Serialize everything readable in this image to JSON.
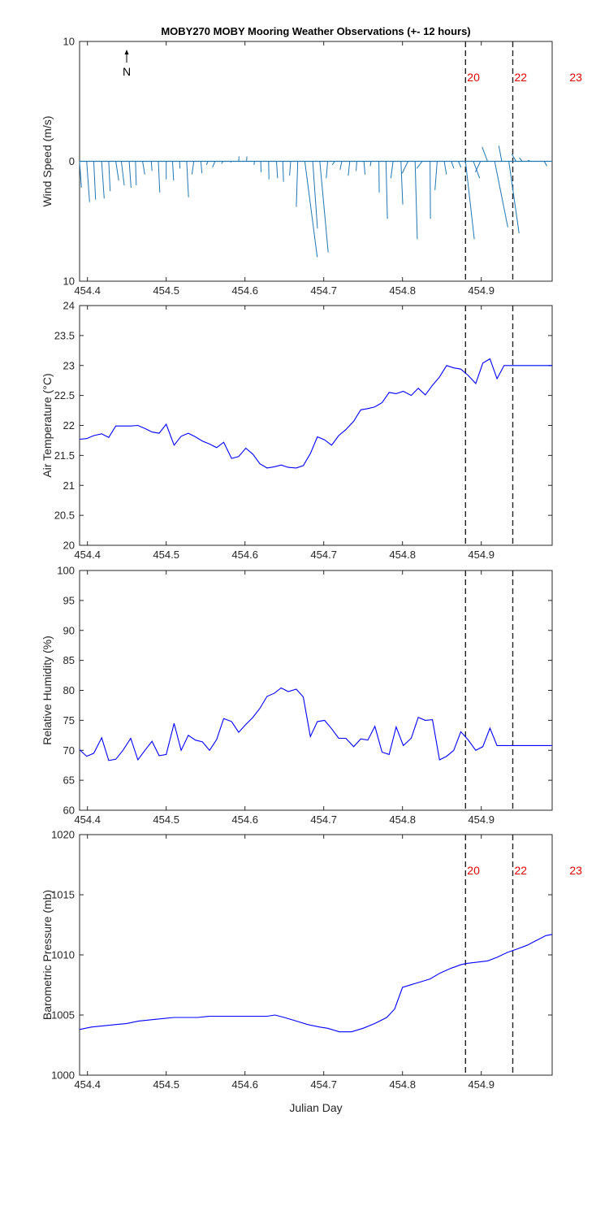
{
  "figure": {
    "title": "MOBY270 MOBY Mooring Weather Observations (+- 12 hours)"
  },
  "colors": {
    "wind": "#1f77b4",
    "line": "#0000ff",
    "event_label": "#e00000",
    "axis": "#262626"
  },
  "chart_data": [
    {
      "type": "quiver",
      "name": "wind",
      "ylabel": "Wind Speed (m/s)",
      "xlim": [
        454.39,
        454.99
      ],
      "ylim": [
        -10,
        10
      ],
      "yticks": [
        10,
        0,
        10
      ],
      "xticks": [
        "454.4",
        "454.5",
        "454.6",
        "454.7",
        "454.8",
        "454.9"
      ],
      "north_label": "N",
      "events": [
        {
          "x": 454.88,
          "label": "20"
        },
        {
          "x": 454.94,
          "label": "22"
        },
        {
          "x": 455.01,
          "label": "23"
        }
      ],
      "arrows": [
        [
          454.39,
          0.5,
          -2.2
        ],
        [
          454.399,
          0.8,
          -3.4
        ],
        [
          454.408,
          0.5,
          -3.2
        ],
        [
          454.418,
          0.7,
          -3.1
        ],
        [
          454.427,
          0.4,
          -2.5
        ],
        [
          454.436,
          0.8,
          -1.6
        ],
        [
          454.443,
          0.8,
          -2.0
        ],
        [
          454.453,
          0.5,
          -2.2
        ],
        [
          454.461,
          0.2,
          -2.0
        ],
        [
          454.47,
          0.6,
          -1.1
        ],
        [
          454.481,
          0.2,
          -0.8
        ],
        [
          454.49,
          0.4,
          -2.6
        ],
        [
          454.5,
          0.0,
          -1.5
        ],
        [
          454.508,
          0.3,
          -1.6
        ],
        [
          454.517,
          0.1,
          -0.6
        ],
        [
          454.526,
          0.5,
          -3.0
        ],
        [
          454.535,
          -0.5,
          -1.1
        ],
        [
          454.544,
          0.3,
          -1.0
        ],
        [
          454.553,
          -0.4,
          -0.3
        ],
        [
          454.562,
          -0.7,
          -0.5
        ],
        [
          454.572,
          -0.4,
          -0.2
        ],
        [
          454.582,
          0.0,
          -0.1
        ],
        [
          454.592,
          0.1,
          0.4
        ],
        [
          454.602,
          0.1,
          0.4
        ],
        [
          454.612,
          -0.1,
          -0.3
        ],
        [
          454.62,
          0.1,
          -0.9
        ],
        [
          454.63,
          0.1,
          -1.5
        ],
        [
          454.64,
          0.3,
          -1.4
        ],
        [
          454.648,
          0.2,
          -1.7
        ],
        [
          454.658,
          -0.3,
          -1.2
        ],
        [
          454.667,
          -0.4,
          -3.8
        ],
        [
          454.676,
          3.4,
          -8.0
        ],
        [
          454.686,
          1.3,
          -5.6
        ],
        [
          454.695,
          2.3,
          -7.6
        ],
        [
          454.705,
          -0.4,
          -1.4
        ],
        [
          454.714,
          -0.7,
          -0.3
        ],
        [
          454.723,
          -0.5,
          -0.7
        ],
        [
          454.733,
          -0.4,
          -1.2
        ],
        [
          454.742,
          -0.2,
          -0.8
        ],
        [
          454.751,
          0.3,
          -1.1
        ],
        [
          454.76,
          -0.2,
          -0.4
        ],
        [
          454.77,
          0.1,
          -2.6
        ],
        [
          454.779,
          0.4,
          -4.8
        ],
        [
          454.788,
          -0.6,
          -1.4
        ],
        [
          454.798,
          0.5,
          -3.6
        ],
        [
          454.807,
          -1.6,
          -1.0
        ],
        [
          454.816,
          0.6,
          -6.5
        ],
        [
          454.825,
          -1.5,
          -0.6
        ],
        [
          454.835,
          0.1,
          -4.8
        ],
        [
          454.844,
          -0.6,
          -2.4
        ],
        [
          454.853,
          0.6,
          -1.1
        ],
        [
          454.862,
          0.7,
          -0.6
        ],
        [
          454.871,
          0.7,
          -0.5
        ],
        [
          454.88,
          2.4,
          -6.5
        ],
        [
          454.89,
          1.7,
          -1.4
        ],
        [
          454.899,
          -1.4,
          -0.9
        ],
        [
          454.908,
          -1.5,
          1.2
        ],
        [
          454.917,
          3.6,
          -5.5
        ],
        [
          454.926,
          -0.8,
          1.3
        ],
        [
          454.935,
          2.8,
          -6.0
        ],
        [
          454.944,
          -1.1,
          0.6
        ],
        [
          454.952,
          -0.8,
          0.3
        ],
        [
          454.962,
          -0.6,
          0.1
        ],
        [
          454.971,
          -0.3,
          0.0
        ],
        [
          454.98,
          0.7,
          -0.4
        ]
      ]
    },
    {
      "type": "line",
      "name": "air-temperature",
      "ylabel": "Air Temperature (°C)",
      "xlim": [
        454.39,
        454.99
      ],
      "ylim": [
        20,
        24
      ],
      "yticks": [
        "20",
        "20.5",
        "21",
        "21.5",
        "22",
        "22.5",
        "23",
        "23.5",
        "24"
      ],
      "xticks": [
        "454.4",
        "454.5",
        "454.6",
        "454.7",
        "454.8",
        "454.9"
      ],
      "events": [
        {
          "x": 454.88
        },
        {
          "x": 454.94
        }
      ],
      "x": [
        454.39,
        454.399,
        454.408,
        454.418,
        454.427,
        454.436,
        454.445,
        454.455,
        454.464,
        454.473,
        454.482,
        454.491,
        454.5,
        454.51,
        454.519,
        454.528,
        454.537,
        454.546,
        454.555,
        454.564,
        454.573,
        454.583,
        454.592,
        454.601,
        454.61,
        454.619,
        454.628,
        454.637,
        454.646,
        454.655,
        454.665,
        454.674,
        454.683,
        454.692,
        454.701,
        454.71,
        454.719,
        454.728,
        454.738,
        454.747,
        454.756,
        454.765,
        454.774,
        454.783,
        454.792,
        454.801,
        454.811,
        454.82,
        454.829,
        454.838,
        454.847,
        454.856,
        454.865,
        454.874,
        454.883,
        454.893,
        454.902,
        454.911,
        454.92,
        454.929,
        454.938,
        454.947,
        454.956,
        454.966,
        454.975,
        454.984,
        454.99
      ],
      "y": [
        21.77,
        21.78,
        21.83,
        21.86,
        21.8,
        21.99,
        21.99,
        21.99,
        22.0,
        21.95,
        21.89,
        21.87,
        22.02,
        21.67,
        21.82,
        21.87,
        21.81,
        21.74,
        21.69,
        21.63,
        21.72,
        21.45,
        21.48,
        21.62,
        21.52,
        21.36,
        21.29,
        21.31,
        21.34,
        21.3,
        21.29,
        21.33,
        21.53,
        21.81,
        21.76,
        21.67,
        21.83,
        21.93,
        22.07,
        22.26,
        22.28,
        22.31,
        22.38,
        22.55,
        22.53,
        22.57,
        22.5,
        22.62,
        22.51,
        22.67,
        22.81,
        23.0,
        22.96,
        22.94,
        22.84,
        22.7,
        23.04,
        23.11,
        22.78,
        23.0,
        23.0,
        23.0,
        23.0,
        23.0,
        23.0,
        23.0,
        23.0
      ]
    },
    {
      "type": "line",
      "name": "relative-humidity",
      "ylabel": "Relative Humidity (%)",
      "xlim": [
        454.39,
        454.99
      ],
      "ylim": [
        60,
        100
      ],
      "yticks": [
        "60",
        "65",
        "70",
        "75",
        "80",
        "85",
        "90",
        "95",
        "100"
      ],
      "xticks": [
        "454.4",
        "454.5",
        "454.6",
        "454.7",
        "454.8",
        "454.9"
      ],
      "events": [
        {
          "x": 454.88
        },
        {
          "x": 454.94
        }
      ],
      "x": [
        454.39,
        454.399,
        454.408,
        454.418,
        454.427,
        454.436,
        454.445,
        454.455,
        454.464,
        454.473,
        454.482,
        454.491,
        454.5,
        454.51,
        454.519,
        454.528,
        454.537,
        454.546,
        454.555,
        454.564,
        454.573,
        454.583,
        454.592,
        454.601,
        454.61,
        454.619,
        454.628,
        454.637,
        454.646,
        454.655,
        454.665,
        454.674,
        454.683,
        454.692,
        454.701,
        454.71,
        454.719,
        454.728,
        454.738,
        454.747,
        454.756,
        454.765,
        454.774,
        454.783,
        454.792,
        454.801,
        454.811,
        454.82,
        454.829,
        454.838,
        454.847,
        454.856,
        454.865,
        454.874,
        454.883,
        454.893,
        454.902,
        454.911,
        454.92,
        454.929,
        454.938,
        454.947,
        454.956,
        454.966,
        454.975,
        454.984,
        454.99
      ],
      "y": [
        70.1,
        69.0,
        69.5,
        72.1,
        68.3,
        68.5,
        70.0,
        72.0,
        68.4,
        70.0,
        71.5,
        69.1,
        69.3,
        74.5,
        70.0,
        72.5,
        71.7,
        71.4,
        70.0,
        71.8,
        75.3,
        74.8,
        73.0,
        74.3,
        75.5,
        77.0,
        79.0,
        79.5,
        80.4,
        79.8,
        80.2,
        78.9,
        72.3,
        74.8,
        75.0,
        73.6,
        72.0,
        72.0,
        70.6,
        71.9,
        71.7,
        74.0,
        69.7,
        69.3,
        73.9,
        70.8,
        72.0,
        75.5,
        75.0,
        75.1,
        68.4,
        69.0,
        70.0,
        73.1,
        71.8,
        70.0,
        70.6,
        73.7,
        70.8,
        70.8,
        70.8,
        70.8,
        70.8,
        70.8,
        70.8,
        70.8,
        70.8
      ]
    },
    {
      "type": "line",
      "name": "barometric-pressure",
      "ylabel": "Barometric Pressure (mb)",
      "xlabel": "Julian Day",
      "xlim": [
        454.39,
        454.99
      ],
      "ylim": [
        1000,
        1020
      ],
      "yticks": [
        "1000",
        "1005",
        "1010",
        "1015",
        "1020"
      ],
      "xticks": [
        "454.4",
        "454.5",
        "454.6",
        "454.7",
        "454.8",
        "454.9"
      ],
      "events": [
        {
          "x": 454.88,
          "label": "20"
        },
        {
          "x": 454.94,
          "label": "22"
        },
        {
          "x": 455.01,
          "label": "23"
        }
      ],
      "x": [
        454.39,
        454.405,
        454.42,
        454.435,
        454.45,
        454.465,
        454.48,
        454.495,
        454.51,
        454.525,
        454.54,
        454.555,
        454.57,
        454.585,
        454.6,
        454.615,
        454.628,
        454.638,
        454.65,
        454.665,
        454.68,
        454.695,
        454.705,
        454.72,
        454.735,
        454.75,
        454.765,
        454.78,
        454.79,
        454.8,
        454.815,
        454.825,
        454.835,
        454.848,
        454.862,
        454.875,
        454.882,
        454.895,
        454.908,
        454.92,
        454.933,
        454.946,
        454.958,
        454.97,
        454.982,
        454.99
      ],
      "y": [
        1003.8,
        1004.0,
        1004.1,
        1004.2,
        1004.3,
        1004.5,
        1004.6,
        1004.7,
        1004.8,
        1004.8,
        1004.8,
        1004.9,
        1004.9,
        1004.9,
        1004.9,
        1004.9,
        1004.9,
        1005.0,
        1004.8,
        1004.5,
        1004.2,
        1004.0,
        1003.9,
        1003.6,
        1003.6,
        1003.9,
        1004.3,
        1004.8,
        1005.5,
        1007.3,
        1007.6,
        1007.8,
        1008.0,
        1008.5,
        1008.9,
        1009.2,
        1009.3,
        1009.4,
        1009.5,
        1009.8,
        1010.2,
        1010.5,
        1010.8,
        1011.2,
        1011.6,
        1011.7
      ]
    }
  ]
}
